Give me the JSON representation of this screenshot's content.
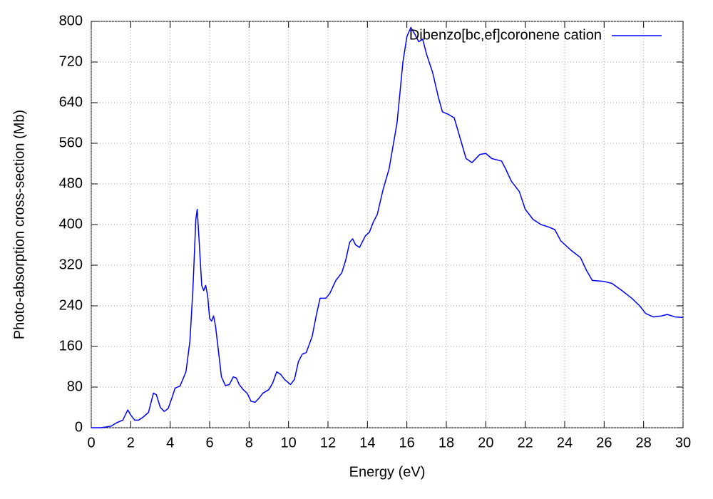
{
  "chart_data": {
    "type": "line",
    "xlabel": "Energy (eV)",
    "ylabel": "Photo-absorption cross-section (Mb)",
    "xlim": [
      0,
      30
    ],
    "xticks": [
      0,
      2,
      4,
      6,
      8,
      10,
      12,
      14,
      16,
      18,
      20,
      22,
      24,
      26,
      28,
      30
    ],
    "ylim": [
      0,
      800
    ],
    "yticks": [
      0,
      80,
      160,
      240,
      320,
      400,
      480,
      560,
      640,
      720,
      800
    ],
    "grid": true,
    "legend": "top right",
    "x": [
      0,
      0.5,
      1.0,
      1.3,
      1.6,
      1.85,
      2.0,
      2.2,
      2.4,
      2.6,
      2.9,
      3.15,
      3.3,
      3.5,
      3.7,
      3.9,
      4.1,
      4.25,
      4.5,
      4.8,
      5.0,
      5.15,
      5.3,
      5.37,
      5.45,
      5.6,
      5.7,
      5.8,
      5.9,
      6.0,
      6.1,
      6.2,
      6.3,
      6.45,
      6.6,
      6.8,
      7.0,
      7.2,
      7.35,
      7.5,
      7.7,
      7.9,
      8.1,
      8.3,
      8.5,
      8.7,
      9.0,
      9.2,
      9.4,
      9.6,
      9.8,
      10.1,
      10.3,
      10.5,
      10.7,
      10.9,
      11.2,
      11.4,
      11.6,
      11.9,
      12.1,
      12.4,
      12.7,
      12.9,
      13.1,
      13.25,
      13.4,
      13.6,
      13.9,
      14.1,
      14.3,
      14.5,
      14.8,
      15.1,
      15.5,
      15.8,
      16.0,
      16.2,
      16.4,
      16.6,
      16.8,
      17.0,
      17.3,
      17.6,
      17.8,
      18.1,
      18.4,
      18.7,
      19.0,
      19.3,
      19.7,
      20.0,
      20.3,
      20.8,
      21.0,
      21.3,
      21.7,
      22.0,
      22.4,
      22.8,
      23.2,
      23.5,
      23.8,
      24.3,
      24.8,
      25.1,
      25.4,
      26.0,
      26.4,
      26.9,
      27.4,
      27.8,
      28.1,
      28.5,
      28.9,
      29.2,
      29.6,
      30.0
    ],
    "series": [
      {
        "name": "Dibenzo[bc,ef]coronene cation",
        "color": "#0000ff",
        "values": [
          0,
          0,
          3,
          10,
          15,
          35,
          25,
          15,
          15,
          20,
          30,
          68,
          65,
          40,
          32,
          38,
          60,
          78,
          82,
          110,
          170,
          270,
          410,
          430,
          380,
          280,
          270,
          280,
          260,
          215,
          210,
          220,
          200,
          150,
          100,
          83,
          85,
          100,
          98,
          85,
          75,
          68,
          52,
          50,
          58,
          68,
          75,
          88,
          110,
          105,
          95,
          85,
          95,
          130,
          145,
          148,
          180,
          220,
          255,
          255,
          265,
          290,
          305,
          330,
          365,
          372,
          360,
          355,
          378,
          385,
          405,
          420,
          470,
          510,
          600,
          720,
          770,
          788,
          775,
          760,
          765,
          735,
          700,
          650,
          622,
          617,
          610,
          570,
          530,
          522,
          538,
          540,
          530,
          525,
          510,
          485,
          465,
          430,
          410,
          400,
          395,
          390,
          368,
          350,
          335,
          310,
          290,
          288,
          284,
          270,
          255,
          240,
          225,
          218,
          220,
          223,
          218,
          217
        ]
      }
    ]
  }
}
